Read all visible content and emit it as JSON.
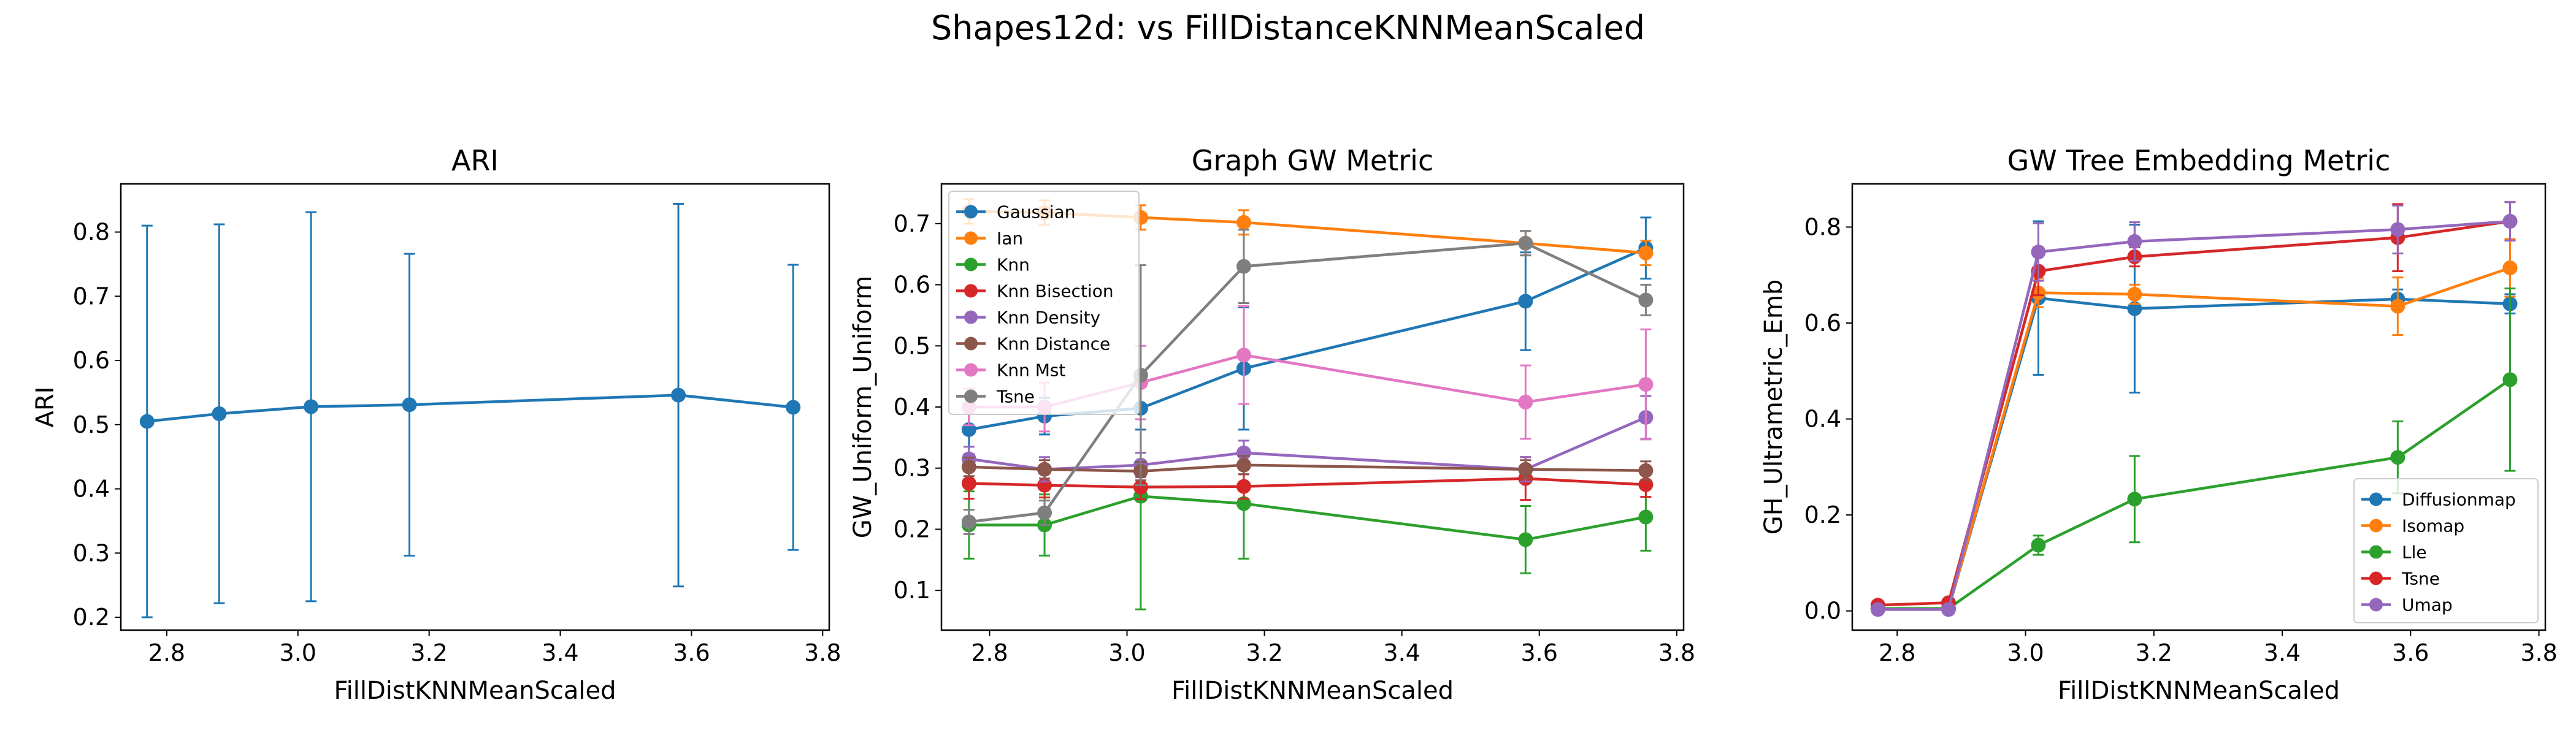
{
  "figure": {
    "suptitle": "Shapes12d: vs FillDistanceKNNMeanScaled"
  },
  "chart_data": [
    {
      "type": "line",
      "title": "ARI",
      "xlabel": "FillDistKNNMeanScaled",
      "ylabel": "ARI",
      "xlim": [
        2.73,
        3.81
      ],
      "ylim": [
        0.18,
        0.875
      ],
      "xticks": [
        2.8,
        3.0,
        3.2,
        3.4,
        3.6,
        3.8
      ],
      "xtick_labels": [
        "2.8",
        "3.0",
        "3.2",
        "3.4",
        "3.6",
        "3.8"
      ],
      "yticks": [
        0.2,
        0.3,
        0.4,
        0.5,
        0.6,
        0.7,
        0.8
      ],
      "ytick_labels": [
        "0.2",
        "0.3",
        "0.4",
        "0.5",
        "0.6",
        "0.7",
        "0.8"
      ],
      "x": [
        2.77,
        2.88,
        3.02,
        3.17,
        3.58,
        3.755
      ],
      "legend": null,
      "series": [
        {
          "color": "#1f77b4",
          "values": [
            0.505,
            0.517,
            0.528,
            0.531,
            0.546,
            0.527
          ],
          "err": [
            0.305,
            0.295,
            0.303,
            0.235,
            0.298,
            0.222
          ]
        }
      ]
    },
    {
      "type": "line",
      "title": "Graph GW Metric",
      "xlabel": "FillDistKNNMeanScaled",
      "ylabel": "GW_Uniform_Uniform",
      "xlim": [
        2.73,
        3.81
      ],
      "ylim": [
        0.035,
        0.765
      ],
      "xticks": [
        2.8,
        3.0,
        3.2,
        3.4,
        3.6,
        3.8
      ],
      "xtick_labels": [
        "2.8",
        "3.0",
        "3.2",
        "3.4",
        "3.6",
        "3.8"
      ],
      "yticks": [
        0.1,
        0.2,
        0.3,
        0.4,
        0.5,
        0.6,
        0.7
      ],
      "ytick_labels": [
        "0.1",
        "0.2",
        "0.3",
        "0.4",
        "0.5",
        "0.6",
        "0.7"
      ],
      "x": [
        2.77,
        2.88,
        3.02,
        3.17,
        3.58,
        3.755
      ],
      "legend": "upper-left",
      "series": [
        {
          "name": "Gaussian",
          "color": "#1f77b4",
          "values": [
            0.363,
            0.385,
            0.398,
            0.463,
            0.573,
            0.66
          ],
          "err": [
            0.04,
            0.03,
            0.035,
            0.1,
            0.08,
            0.05
          ]
        },
        {
          "name": "Ian",
          "color": "#ff7f0e",
          "values": [
            0.72,
            0.718,
            0.71,
            0.702,
            0.668,
            0.652
          ],
          "err": [
            0.02,
            0.02,
            0.02,
            0.02,
            0.02,
            0.02
          ]
        },
        {
          "name": "Knn",
          "color": "#2ca02c",
          "values": [
            0.207,
            0.207,
            0.254,
            0.242,
            0.183,
            0.22
          ],
          "err": [
            0.055,
            0.05,
            0.185,
            0.09,
            0.055,
            0.055
          ]
        },
        {
          "name": "Knn Bisection",
          "color": "#d62728",
          "values": [
            0.275,
            0.272,
            0.269,
            0.27,
            0.283,
            0.273
          ],
          "err": [
            0.025,
            0.02,
            0.02,
            0.02,
            0.035,
            0.02
          ]
        },
        {
          "name": "Knn Density",
          "color": "#9467bd",
          "values": [
            0.315,
            0.298,
            0.305,
            0.325,
            0.298,
            0.383
          ],
          "err": [
            0.02,
            0.02,
            0.02,
            0.02,
            0.02,
            0.035
          ]
        },
        {
          "name": "Knn Distance",
          "color": "#8c564b",
          "values": [
            0.302,
            0.298,
            0.295,
            0.305,
            0.298,
            0.296
          ],
          "err": [
            0.015,
            0.015,
            0.015,
            0.015,
            0.015,
            0.015
          ]
        },
        {
          "name": "Knn Mst",
          "color": "#e377c2",
          "values": [
            0.4,
            0.4,
            0.44,
            0.485,
            0.408,
            0.437
          ],
          "err": [
            0.03,
            0.04,
            0.06,
            0.08,
            0.06,
            0.09
          ]
        },
        {
          "name": "Tsne",
          "color": "#7f7f7f",
          "values": [
            0.212,
            0.227,
            0.452,
            0.63,
            0.668,
            0.575
          ],
          "err": [
            0.02,
            0.02,
            0.18,
            0.06,
            0.02,
            0.025
          ]
        }
      ]
    },
    {
      "type": "line",
      "title": "GW Tree Embedding Metric",
      "xlabel": "FillDistKNNMeanScaled",
      "ylabel": "GH_Ultrametric_Emb",
      "xlim": [
        2.73,
        3.81
      ],
      "ylim": [
        -0.04,
        0.89
      ],
      "xticks": [
        2.8,
        3.0,
        3.2,
        3.4,
        3.6,
        3.8
      ],
      "xtick_labels": [
        "2.8",
        "3.0",
        "3.2",
        "3.4",
        "3.6",
        "3.8"
      ],
      "yticks": [
        0.0,
        0.2,
        0.4,
        0.6,
        0.8
      ],
      "ytick_labels": [
        "0.0",
        "0.2",
        "0.4",
        "0.6",
        "0.8"
      ],
      "x": [
        2.77,
        2.88,
        3.02,
        3.17,
        3.58,
        3.755
      ],
      "legend": "lower-right",
      "series": [
        {
          "name": "Diffusionmap",
          "color": "#1f77b4",
          "values": [
            0.005,
            0.005,
            0.652,
            0.63,
            0.65,
            0.64
          ],
          "err": [
            0.005,
            0.005,
            0.16,
            0.175,
            0.02,
            0.02
          ]
        },
        {
          "name": "Isomap",
          "color": "#ff7f0e",
          "values": [
            0.005,
            0.005,
            0.663,
            0.66,
            0.635,
            0.715
          ],
          "err": [
            0.005,
            0.005,
            0.03,
            0.02,
            0.06,
            0.06
          ]
        },
        {
          "name": "Lle",
          "color": "#2ca02c",
          "values": [
            0.005,
            0.005,
            0.137,
            0.233,
            0.32,
            0.482
          ],
          "err": [
            0.005,
            0.005,
            0.02,
            0.09,
            0.075,
            0.19
          ]
        },
        {
          "name": "Tsne",
          "color": "#d62728",
          "values": [
            0.012,
            0.017,
            0.708,
            0.738,
            0.778,
            0.812
          ],
          "err": [
            0.005,
            0.005,
            0.05,
            0.02,
            0.07,
            0.04
          ]
        },
        {
          "name": "Umap",
          "color": "#9467bd",
          "values": [
            0.003,
            0.003,
            0.748,
            0.77,
            0.795,
            0.812
          ],
          "err": [
            0.005,
            0.005,
            0.06,
            0.04,
            0.05,
            0.04
          ]
        }
      ]
    }
  ]
}
